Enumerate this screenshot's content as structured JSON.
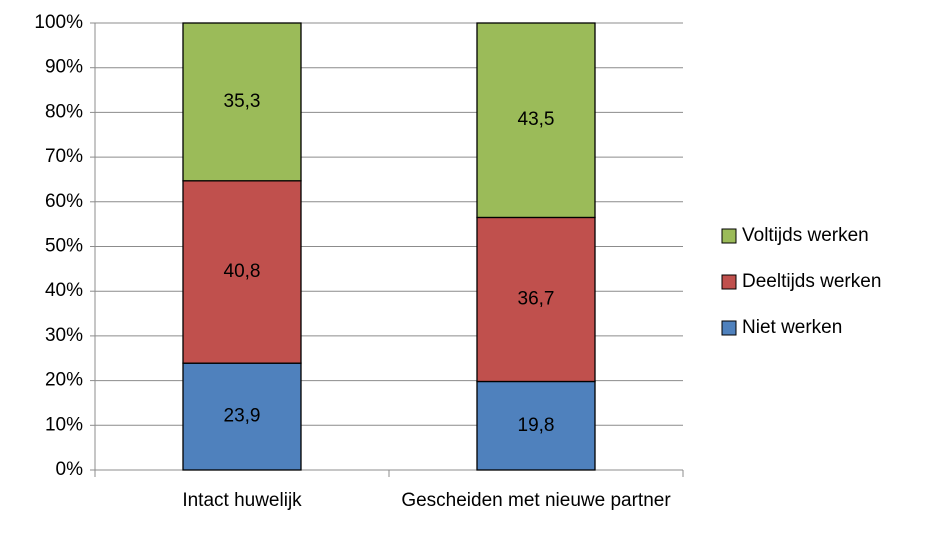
{
  "chart_data": {
    "type": "stacked_bar",
    "categories": [
      "Intact huwelijk",
      "Gescheiden met nieuwe partner"
    ],
    "series": [
      {
        "name": "Niet werken",
        "color": "#4f81bd",
        "values": [
          23.9,
          19.8
        ],
        "value_labels": [
          "23,9",
          "19,8"
        ]
      },
      {
        "name": "Deeltijds werken",
        "color": "#c0504d",
        "values": [
          40.8,
          36.7
        ],
        "value_labels": [
          "40,8",
          "36,7"
        ]
      },
      {
        "name": "Voltijds werken",
        "color": "#9bbb59",
        "values": [
          35.3,
          43.5
        ],
        "value_labels": [
          "35,3",
          "43,5"
        ]
      }
    ],
    "ylim": [
      0,
      100
    ],
    "yticks": [
      {
        "value": 0,
        "label": "0%"
      },
      {
        "value": 10,
        "label": "10%"
      },
      {
        "value": 20,
        "label": "20%"
      },
      {
        "value": 30,
        "label": "30%"
      },
      {
        "value": 40,
        "label": "40%"
      },
      {
        "value": 50,
        "label": "50%"
      },
      {
        "value": 60,
        "label": "60%"
      },
      {
        "value": 70,
        "label": "70%"
      },
      {
        "value": 80,
        "label": "80%"
      },
      {
        "value": 90,
        "label": "90%"
      },
      {
        "value": 100,
        "label": "100%"
      }
    ],
    "grid": true,
    "legend": "right"
  }
}
